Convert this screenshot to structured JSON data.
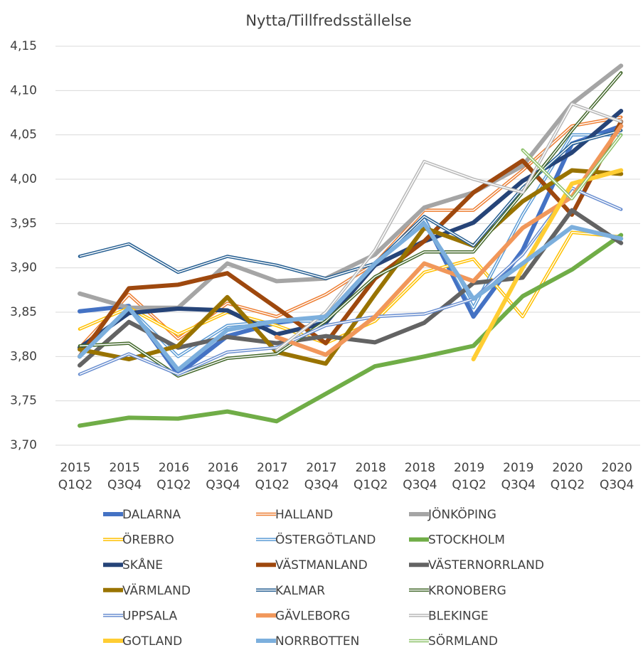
{
  "chart_data": {
    "type": "line",
    "title": "Nytta/Tillfredsställelse",
    "categories": [
      "2015 Q1Q2",
      "2015 Q3Q4",
      "2016 Q1Q2",
      "2016 Q3Q4",
      "2017 Q1Q2",
      "2017 Q3Q4",
      "2018 Q1Q2",
      "2018 Q3Q4",
      "2019 Q1Q2",
      "2019 Q3Q4",
      "2020 Q1Q2",
      "2020 Q3Q4"
    ],
    "ylim": [
      3.7,
      4.15
    ],
    "yticks": [
      {
        "value": 3.7,
        "label": "3,70"
      },
      {
        "value": 3.75,
        "label": "3,75"
      },
      {
        "value": 3.8,
        "label": "3,80"
      },
      {
        "value": 3.85,
        "label": "3,85"
      },
      {
        "value": 3.9,
        "label": "3,90"
      },
      {
        "value": 3.95,
        "label": "3,95"
      },
      {
        "value": 4.0,
        "label": "4,00"
      },
      {
        "value": 4.05,
        "label": "4,05"
      },
      {
        "value": 4.1,
        "label": "4,10"
      },
      {
        "value": 4.15,
        "label": "4,15"
      }
    ],
    "grid": true,
    "legend": "bottom",
    "series": [
      {
        "name": "DALARNA",
        "color": "#4472c4",
        "style": "solid",
        "values": [
          3.851,
          3.857,
          3.78,
          3.823,
          3.838,
          3.845,
          3.905,
          3.955,
          3.845,
          3.92,
          4.04,
          4.06
        ]
      },
      {
        "name": "HALLAND",
        "color": "#ed7d31",
        "style": "double",
        "values": [
          3.81,
          3.87,
          3.82,
          3.86,
          3.845,
          3.87,
          3.905,
          3.965,
          3.965,
          4.01,
          4.06,
          4.07
        ]
      },
      {
        "name": "JÖNKÖPING",
        "color": "#a5a5a5",
        "style": "solid",
        "values": [
          3.871,
          3.855,
          3.855,
          3.905,
          3.885,
          3.888,
          3.915,
          3.968,
          3.985,
          4.015,
          4.085,
          4.128
        ]
      },
      {
        "name": "ÖREBRO",
        "color": "#ffc000",
        "style": "double",
        "values": [
          3.831,
          3.855,
          3.825,
          3.85,
          3.835,
          3.815,
          3.84,
          3.895,
          3.91,
          3.845,
          3.94,
          3.935
        ]
      },
      {
        "name": "ÖSTERGÖTLAND",
        "color": "#5b9bd5",
        "style": "double",
        "values": [
          3.8,
          3.855,
          3.8,
          3.835,
          3.84,
          3.84,
          3.905,
          3.955,
          3.855,
          3.96,
          4.05,
          4.05
        ]
      },
      {
        "name": "STOCKHOLM",
        "color": "#70ad47",
        "style": "solid",
        "values": [
          3.722,
          3.731,
          3.73,
          3.738,
          3.727,
          3.758,
          3.789,
          3.8,
          3.812,
          3.868,
          3.898,
          3.937
        ]
      },
      {
        "name": "SKÅNE",
        "color": "#264478",
        "style": "solid",
        "values": [
          3.81,
          3.849,
          3.854,
          3.852,
          3.825,
          3.838,
          3.903,
          3.93,
          3.951,
          3.998,
          4.03,
          4.077
        ]
      },
      {
        "name": "VÄSTMANLAND",
        "color": "#9e480e",
        "style": "solid",
        "values": [
          3.8,
          3.877,
          3.881,
          3.894,
          3.855,
          3.815,
          3.888,
          3.93,
          3.985,
          4.021,
          3.96,
          4.065
        ]
      },
      {
        "name": "VÄSTERNORRLAND",
        "color": "#636363",
        "style": "solid",
        "values": [
          3.79,
          3.839,
          3.81,
          3.822,
          3.815,
          3.823,
          3.816,
          3.838,
          3.883,
          3.889,
          3.965,
          3.928
        ]
      },
      {
        "name": "VÄRMLAND",
        "color": "#997300",
        "style": "solid",
        "values": [
          3.808,
          3.797,
          3.812,
          3.867,
          3.805,
          3.792,
          3.87,
          3.945,
          3.925,
          3.975,
          4.01,
          4.006
        ]
      },
      {
        "name": "KALMAR",
        "color": "#255e91",
        "style": "double",
        "values": [
          3.913,
          3.927,
          3.895,
          3.913,
          3.903,
          3.888,
          3.905,
          3.958,
          3.925,
          3.99,
          4.04,
          4.055
        ]
      },
      {
        "name": "KRONOBERG",
        "color": "#43682b",
        "style": "double",
        "values": [
          3.812,
          3.815,
          3.778,
          3.798,
          3.803,
          3.84,
          3.89,
          3.918,
          3.918,
          3.985,
          4.055,
          4.12
        ]
      },
      {
        "name": "UPPSALA",
        "color": "#698ed0",
        "style": "double",
        "values": [
          3.78,
          3.803,
          3.78,
          3.805,
          3.81,
          3.835,
          3.845,
          3.848,
          3.865,
          3.915,
          3.99,
          3.966
        ]
      },
      {
        "name": "GÄVLEBORG",
        "color": "#f1975a",
        "style": "solid",
        "values": [
          null,
          null,
          null,
          null,
          3.822,
          3.802,
          3.845,
          3.905,
          3.885,
          3.945,
          3.98,
          4.06
        ]
      },
      {
        "name": "BLEKINGE",
        "color": "#b7b7b7",
        "style": "double",
        "values": [
          null,
          null,
          null,
          null,
          3.807,
          3.85,
          3.92,
          4.02,
          4.0,
          3.985,
          4.085,
          4.065
        ]
      },
      {
        "name": "GOTLAND",
        "color": "#ffcd33",
        "style": "solid",
        "values": [
          null,
          null,
          null,
          null,
          null,
          null,
          null,
          null,
          3.797,
          3.9,
          3.995,
          4.01
        ]
      },
      {
        "name": "NORRBOTTEN",
        "color": "#7cafdd",
        "style": "solid",
        "values": [
          3.8,
          3.855,
          3.785,
          3.83,
          3.84,
          3.845,
          3.905,
          3.95,
          3.865,
          3.905,
          3.946,
          3.933
        ]
      },
      {
        "name": "SÖRMLAND",
        "color": "#8cc168",
        "style": "double",
        "values": [
          null,
          null,
          null,
          null,
          null,
          null,
          null,
          null,
          null,
          4.033,
          3.978,
          4.05
        ]
      }
    ]
  }
}
